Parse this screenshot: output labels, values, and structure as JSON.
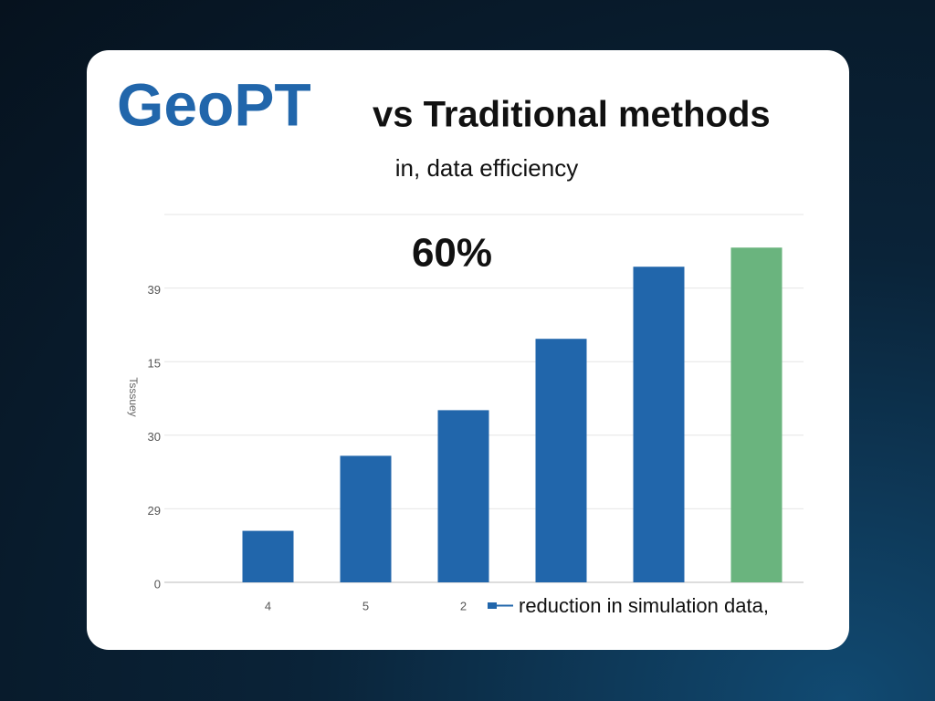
{
  "chart_data": {
    "type": "bar",
    "title_brand": "GeoPT",
    "title": "vs Traditional methods",
    "subtitle": "in, data efficiency",
    "annotation": "60%",
    "y_label": "Tsssuey",
    "categories": [
      "4",
      "5",
      "2",
      null,
      null,
      null
    ],
    "series": [
      {
        "name": "reduction in simulation data,",
        "color": "#2166ab",
        "values": [
          0.7,
          1.72,
          2.34,
          3.31,
          4.29,
          4.55
        ],
        "colors": [
          "#2166ab",
          "#2166ab",
          "#2166ab",
          "#2166ab",
          "#2166ab",
          "#6ab47e"
        ]
      }
    ],
    "ylim": [
      0,
      5
    ],
    "yticks": [
      0,
      {
        "value": 1,
        "label": "29"
      },
      {
        "value": 2,
        "label": "30"
      },
      {
        "value": 3,
        "label": "15"
      },
      {
        "value": 4,
        "label": "39"
      }
    ],
    "grid": true
  }
}
